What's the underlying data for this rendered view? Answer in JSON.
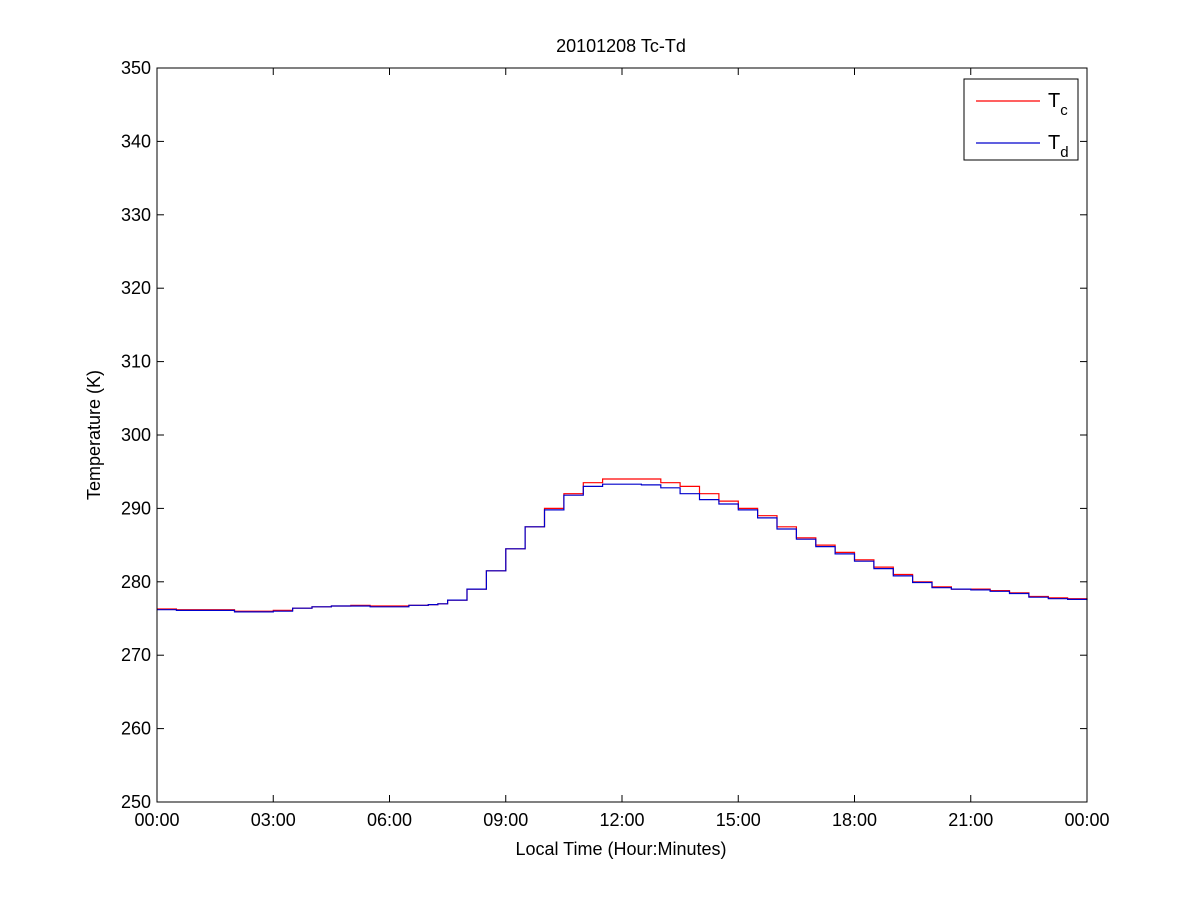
{
  "chart_data": {
    "type": "line",
    "title": "20101208 Tc-Td",
    "xlabel": "Local Time (Hour:Minutes)",
    "ylabel": "Temperature (K)",
    "xlim": [
      0,
      24
    ],
    "ylim": [
      250,
      350
    ],
    "x_tick_values": [
      0,
      3,
      6,
      9,
      12,
      15,
      18,
      21,
      24
    ],
    "x_tick_labels": [
      "00:00",
      "03:00",
      "06:00",
      "09:00",
      "12:00",
      "15:00",
      "18:00",
      "21:00",
      "00:00"
    ],
    "y_tick_values": [
      250,
      260,
      270,
      280,
      290,
      300,
      310,
      320,
      330,
      340,
      350
    ],
    "y_tick_labels": [
      "250",
      "260",
      "270",
      "280",
      "290",
      "300",
      "310",
      "320",
      "330",
      "340",
      "350"
    ],
    "grid": false,
    "legend_position": "top-right",
    "series": [
      {
        "name": "T",
        "subscript": "c",
        "color": "#ff0000",
        "x": [
          0,
          0.5,
          1,
          1.5,
          2,
          2.5,
          3,
          3.5,
          4,
          4.5,
          5,
          5.5,
          6,
          6.5,
          7,
          7.25,
          7.5,
          8,
          8.5,
          9,
          9.5,
          10,
          10.5,
          11,
          11.5,
          12,
          12.5,
          13,
          13.5,
          14,
          14.5,
          15,
          15.5,
          16,
          16.5,
          17,
          17.5,
          18,
          18.5,
          19,
          19.5,
          20,
          20.5,
          21,
          21.5,
          22,
          22.5,
          23,
          23.5,
          24
        ],
        "y": [
          276.3,
          276.2,
          276.2,
          276.2,
          276.0,
          276.0,
          276.1,
          276.4,
          276.6,
          276.7,
          276.8,
          276.7,
          276.7,
          276.8,
          276.9,
          277.0,
          277.5,
          279.0,
          281.5,
          284.5,
          287.5,
          290.0,
          292.0,
          293.5,
          294.0,
          294.0,
          294.0,
          293.5,
          293.0,
          292.0,
          291.0,
          290.0,
          289.0,
          287.5,
          286.0,
          285.0,
          284.0,
          283.0,
          282.0,
          281.0,
          280.0,
          279.3,
          279.0,
          279.0,
          278.8,
          278.5,
          278.0,
          277.8,
          277.7,
          277.6
        ]
      },
      {
        "name": "T",
        "subscript": "d",
        "color": "#0000cc",
        "x": [
          0,
          0.5,
          1,
          1.5,
          2,
          2.5,
          3,
          3.5,
          4,
          4.5,
          5,
          5.5,
          6,
          6.5,
          7,
          7.25,
          7.5,
          8,
          8.5,
          9,
          9.5,
          10,
          10.5,
          11,
          11.5,
          12,
          12.5,
          13,
          13.5,
          14,
          14.5,
          15,
          15.5,
          16,
          16.5,
          17,
          17.5,
          18,
          18.5,
          19,
          19.5,
          20,
          20.5,
          21,
          21.5,
          22,
          22.5,
          23,
          23.5,
          24
        ],
        "y": [
          276.2,
          276.1,
          276.1,
          276.1,
          275.9,
          275.9,
          276.0,
          276.4,
          276.6,
          276.7,
          276.7,
          276.6,
          276.6,
          276.8,
          276.9,
          277.0,
          277.5,
          279.0,
          281.5,
          284.5,
          287.5,
          289.8,
          291.8,
          293.0,
          293.3,
          293.3,
          293.2,
          292.8,
          292.0,
          291.2,
          290.6,
          289.8,
          288.7,
          287.2,
          285.8,
          284.8,
          283.8,
          282.8,
          281.8,
          280.8,
          279.9,
          279.2,
          279.0,
          278.9,
          278.7,
          278.4,
          277.9,
          277.7,
          277.6,
          277.5
        ]
      }
    ]
  }
}
